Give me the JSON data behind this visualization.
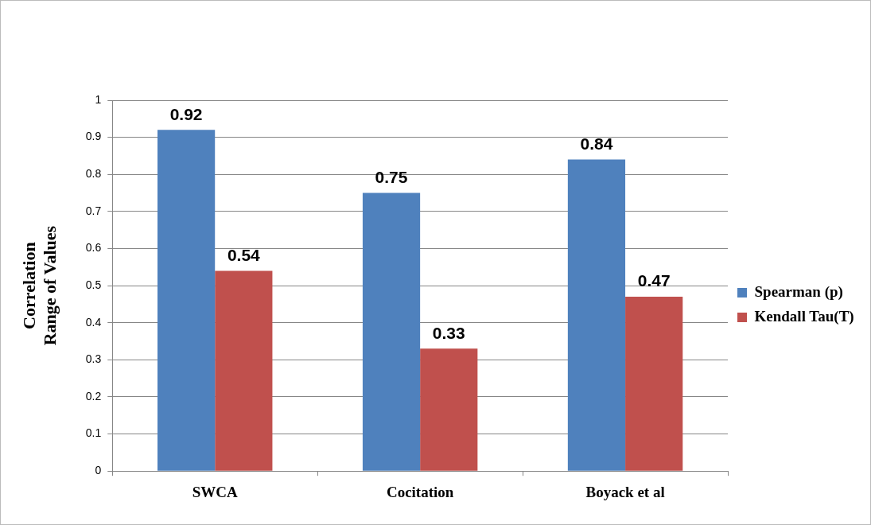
{
  "chart_data": {
    "type": "bar",
    "ylabel": "Correlation\nRange of Values",
    "categories": [
      "SWCA",
      "Cocitation",
      "Boyack et al"
    ],
    "series": [
      {
        "name": "Spearman (p)",
        "color": "#4f81bd",
        "values": [
          0.92,
          0.75,
          0.84
        ]
      },
      {
        "name": "Kendall Tau(T)",
        "color": "#c0504d",
        "values": [
          0.54,
          0.33,
          0.47
        ]
      }
    ],
    "ylim": [
      0,
      1
    ],
    "yticks": [
      0,
      0.1,
      0.2,
      0.3,
      0.4,
      0.5,
      0.6,
      0.7,
      0.8,
      0.9,
      1
    ],
    "grid": "y",
    "legend": "right",
    "data_labels": true
  }
}
